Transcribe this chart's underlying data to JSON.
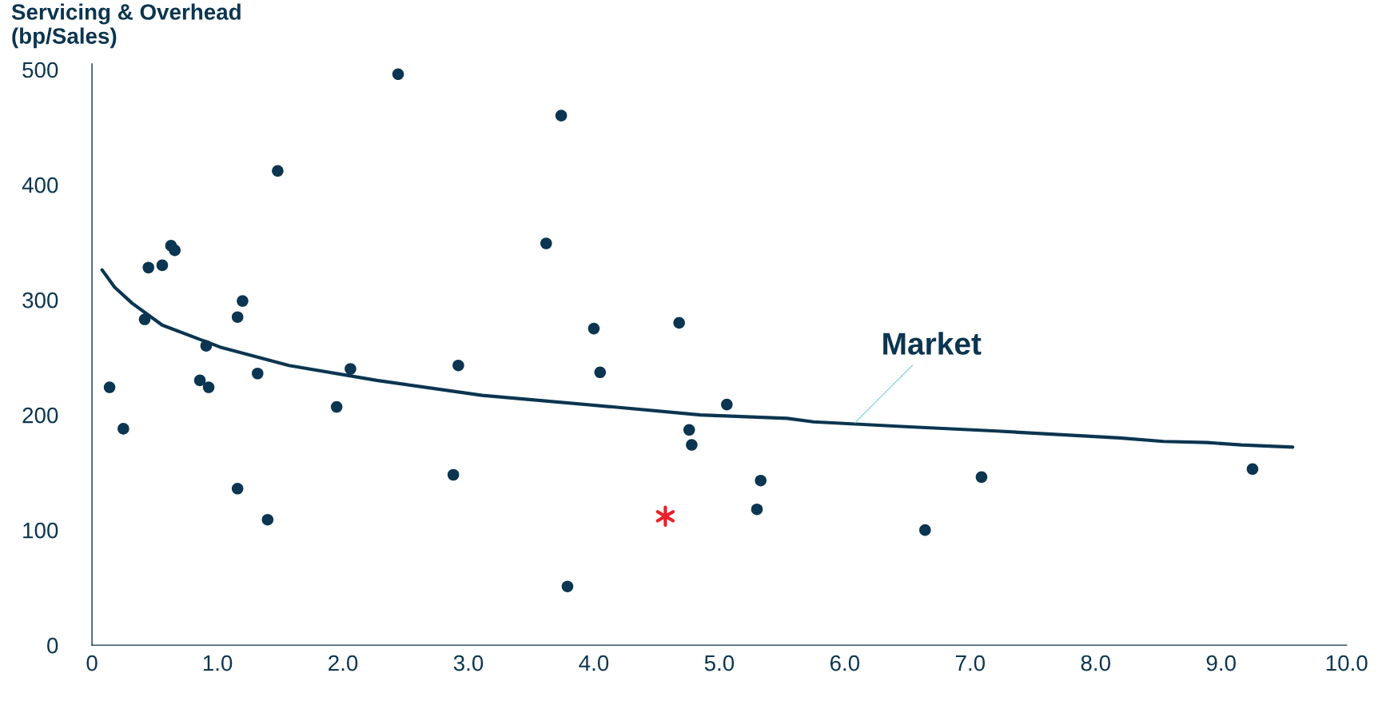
{
  "chart_data": {
    "type": "scatter",
    "ylabel": "Servicing & Overhead\n(bp/Sales)",
    "xlim": [
      0,
      10
    ],
    "ylim": [
      0,
      505
    ],
    "xticks": [
      {
        "value": 0,
        "label": "0"
      },
      {
        "value": 1,
        "label": "1.0"
      },
      {
        "value": 2,
        "label": "2.0"
      },
      {
        "value": 3,
        "label": "3.0"
      },
      {
        "value": 4,
        "label": "4.0"
      },
      {
        "value": 5,
        "label": "5.0"
      },
      {
        "value": 6,
        "label": "6.0"
      },
      {
        "value": 7,
        "label": "7.0"
      },
      {
        "value": 8,
        "label": "8.0"
      },
      {
        "value": 9,
        "label": "9.0"
      },
      {
        "value": 10,
        "label": "10.0"
      }
    ],
    "yticks": [
      0,
      100,
      200,
      300,
      400,
      500
    ],
    "grid": false,
    "legend": false,
    "annotations": [
      {
        "text": "Market",
        "x": 6.07,
        "y": 192
      }
    ],
    "series": [
      {
        "marker": "circle",
        "color": "#0b3550",
        "x": [
          0.14,
          0.25,
          0.45,
          0.56,
          0.63,
          0.66,
          0.42,
          0.91,
          0.86,
          0.93,
          1.16,
          1.2,
          1.16,
          1.32,
          1.4,
          1.48,
          1.95,
          2.06,
          2.44,
          2.88,
          2.92,
          3.62,
          3.74,
          3.79,
          4.0,
          4.05,
          4.68,
          4.76,
          4.78,
          5.06,
          5.33,
          5.3,
          6.64,
          7.09,
          9.25
        ],
        "values": [
          224,
          188,
          328,
          330,
          347,
          343,
          283,
          260,
          230,
          224,
          285,
          299,
          136,
          236,
          109,
          412,
          207,
          240,
          496,
          148,
          243,
          349,
          460,
          51,
          275,
          237,
          280,
          187,
          174,
          209,
          143,
          118,
          100,
          146,
          153
        ]
      },
      {
        "marker": "cross",
        "color": "#e8202a",
        "x": [
          4.57
        ],
        "values": [
          112
        ]
      },
      {
        "type": "line",
        "marker": "none",
        "line_style": "solid",
        "color": "#0b3550",
        "x": [
          0.08,
          0.18,
          0.32,
          0.56,
          1.02,
          1.57,
          2.27,
          3.11,
          4.15,
          4.85,
          5.54,
          5.75,
          6.45,
          7.21,
          8.19,
          8.54,
          8.89,
          9.16,
          9.57
        ],
        "values": [
          326,
          311,
          297,
          278,
          259,
          243,
          230,
          217,
          207,
          200,
          197,
          194,
          190,
          186,
          180,
          177,
          176,
          174,
          172
        ]
      }
    ]
  }
}
